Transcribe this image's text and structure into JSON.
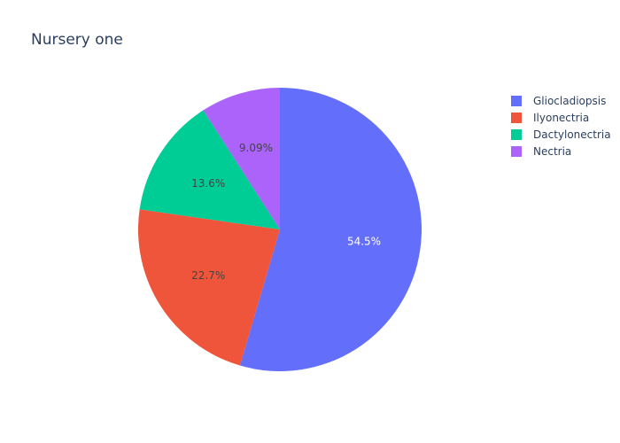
{
  "chart_data": {
    "type": "pie",
    "title": "Nursery one",
    "categories": [
      "Gliocladiopsis",
      "Ilyonectria",
      "Dactylonectria",
      "Nectria"
    ],
    "values": [
      12,
      5,
      3,
      2
    ],
    "percent_labels": [
      "54.5%",
      "22.7%",
      "13.6%",
      "9.09%"
    ],
    "colors": [
      "#636efa",
      "#EF553B",
      "#00cc96",
      "#ab63fa"
    ],
    "label_colors": [
      "#ffffff",
      "#444444",
      "#444444",
      "#444444"
    ],
    "legend_placement": "top-right",
    "sort": "descending",
    "direction": "clockwise",
    "start_angle": "12 o'clock"
  }
}
